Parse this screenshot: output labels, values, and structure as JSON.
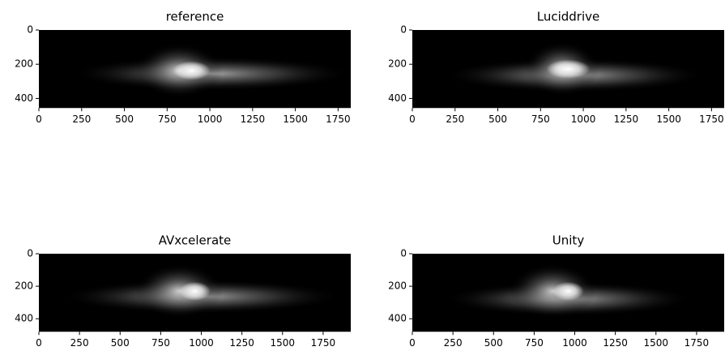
{
  "chart_data": [
    {
      "type": "image",
      "title": "reference",
      "xlim": [
        0,
        1824
      ],
      "ylim": [
        456,
        0
      ],
      "xticks": [
        0,
        250,
        500,
        750,
        1000,
        1250,
        1500,
        1750
      ],
      "yticks": [
        0,
        200,
        400
      ]
    },
    {
      "type": "image",
      "title": "Luciddrive",
      "xlim": [
        0,
        1824
      ],
      "ylim": [
        456,
        0
      ],
      "xticks": [
        0,
        250,
        500,
        750,
        1000,
        1250,
        1500,
        1750
      ],
      "yticks": [
        0,
        200,
        400
      ]
    },
    {
      "type": "image",
      "title": "AVxcelerate",
      "xlim": [
        0,
        1920
      ],
      "ylim": [
        480,
        0
      ],
      "xticks": [
        0,
        250,
        500,
        750,
        1000,
        1250,
        1500,
        1750
      ],
      "yticks": [
        0,
        200,
        400
      ]
    },
    {
      "type": "image",
      "title": "Unity",
      "xlim": [
        0,
        1920
      ],
      "ylim": [
        480,
        0
      ],
      "xticks": [
        0,
        250,
        500,
        750,
        1000,
        1250,
        1500,
        1750
      ],
      "yticks": [
        0,
        200,
        400
      ]
    }
  ]
}
